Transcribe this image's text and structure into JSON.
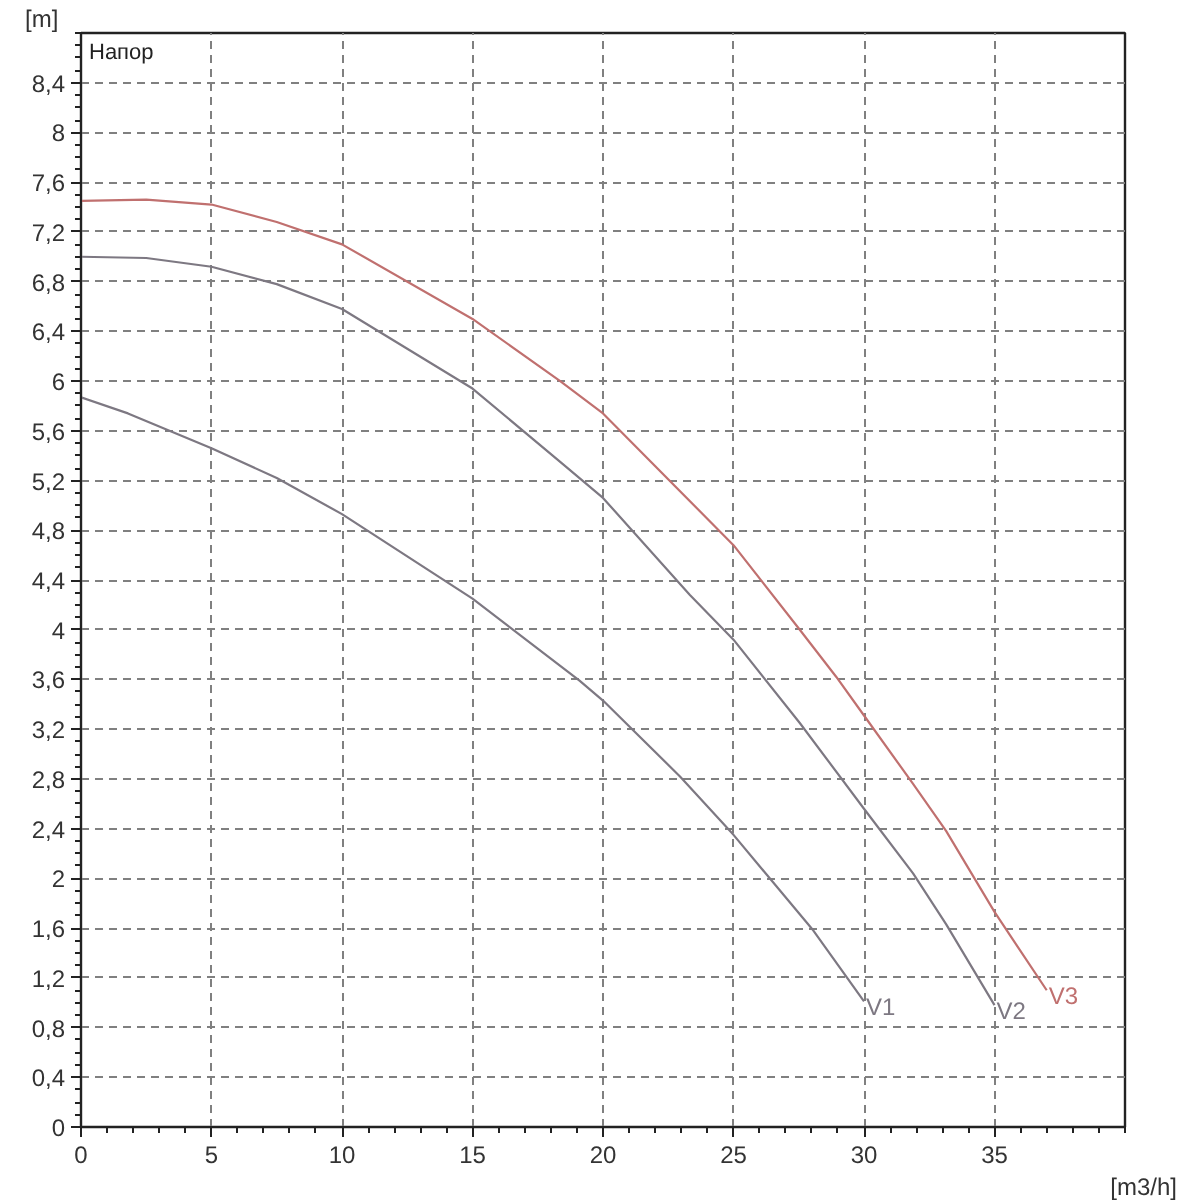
{
  "chart_data": {
    "type": "line",
    "title": "Напор",
    "xlabel": "[m3/h]",
    "ylabel": "[m]",
    "xlim": [
      0,
      40
    ],
    "ylim": [
      0,
      8.8
    ],
    "xticks": [
      0,
      5,
      10,
      15,
      20,
      25,
      30,
      35
    ],
    "yticks": [
      0,
      {
        "value": 0.4,
        "label": "0,4"
      },
      {
        "value": 0.8,
        "label": "0,8"
      },
      {
        "value": 1.2,
        "label": "1,2"
      },
      {
        "value": 1.6,
        "label": "1,6"
      },
      2,
      {
        "value": 2.4,
        "label": "2,4"
      },
      {
        "value": 2.8,
        "label": "2,8"
      },
      {
        "value": 3.2,
        "label": "3,2"
      },
      {
        "value": 3.6,
        "label": "3,6"
      },
      4,
      {
        "value": 4.4,
        "label": "4,4"
      },
      {
        "value": 4.8,
        "label": "4,8"
      },
      {
        "value": 5.2,
        "label": "5,2"
      },
      {
        "value": 5.6,
        "label": "5,6"
      },
      6,
      {
        "value": 6.4,
        "label": "6,4"
      },
      {
        "value": 6.8,
        "label": "6,8"
      },
      {
        "value": 7.2,
        "label": "7,2"
      },
      {
        "value": 7.6,
        "label": "7,6"
      },
      8,
      {
        "value": 8.4,
        "label": "8,4"
      }
    ],
    "grid": true,
    "line_style": "solid",
    "series": [
      {
        "name": "V1",
        "color": "#7d7882",
        "x": [
          0,
          1.8,
          5,
          7.5,
          10,
          15,
          19.1,
          20,
          22.95,
          25,
          28.06,
          30
        ],
        "values": [
          5.87,
          5.74,
          5.46,
          5.22,
          4.93,
          4.25,
          3.59,
          3.43,
          2.82,
          2.35,
          1.58,
          1.01
        ]
      },
      {
        "name": "V2",
        "color": "#7d7882",
        "x": [
          0,
          2.5,
          5,
          7.5,
          10,
          15,
          18.36,
          20,
          23.33,
          25,
          27.54,
          30,
          31.88,
          33.15,
          35
        ],
        "values": [
          7.0,
          6.99,
          6.92,
          6.78,
          6.58,
          5.94,
          5.35,
          5.06,
          4.28,
          3.92,
          3.25,
          2.56,
          2.04,
          1.63,
          0.98
        ]
      },
      {
        "name": "V3",
        "color": "#c0706f",
        "x": [
          0,
          2.5,
          5,
          7.5,
          10,
          15,
          18.36,
          20,
          25,
          27.54,
          28.94,
          30,
          31.88,
          33.15,
          35,
          37
        ],
        "values": [
          7.45,
          7.46,
          7.42,
          7.28,
          7.1,
          6.5,
          6.0,
          5.74,
          4.68,
          4.0,
          3.62,
          3.31,
          2.76,
          2.38,
          1.73,
          1.1
        ]
      }
    ]
  }
}
